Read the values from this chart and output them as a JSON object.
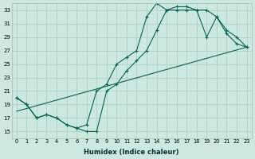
{
  "xlabel": "Humidex (Indice chaleur)",
  "bg_color": "#cce8e0",
  "grid_color": "#aaccbb",
  "line_color": "#006655",
  "xlim": [
    -0.5,
    23.5
  ],
  "ylim": [
    14,
    34
  ],
  "xticks": [
    0,
    1,
    2,
    3,
    4,
    5,
    6,
    7,
    8,
    9,
    10,
    11,
    12,
    13,
    14,
    15,
    16,
    17,
    18,
    19,
    20,
    21,
    22,
    23
  ],
  "yticks": [
    15,
    17,
    19,
    21,
    23,
    25,
    27,
    29,
    31,
    33
  ],
  "series": [
    {
      "x": [
        0,
        1,
        2,
        3,
        4,
        5,
        6,
        7,
        8,
        9,
        10,
        11,
        12,
        13,
        14,
        15,
        16,
        17,
        18,
        19,
        20,
        21,
        22,
        23
      ],
      "y": [
        20,
        19,
        17,
        17.5,
        17,
        16,
        15.5,
        16,
        21,
        22,
        25,
        26,
        27,
        32,
        34,
        33,
        33.5,
        33.5,
        33,
        29,
        32,
        29.5,
        28,
        27.5
      ],
      "marker": true
    },
    {
      "x": [
        0,
        1,
        2,
        3,
        4,
        5,
        6,
        7,
        8,
        9,
        10,
        11,
        12,
        13,
        14,
        15,
        16,
        17,
        18,
        19,
        20,
        21,
        22,
        23
      ],
      "y": [
        20,
        19,
        17,
        17.5,
        17,
        16,
        15.5,
        15,
        15,
        21,
        22,
        24,
        25.5,
        27,
        30,
        33,
        33,
        33,
        33,
        33,
        32,
        30,
        29,
        27.5
      ],
      "marker": true
    },
    {
      "x": [
        0,
        23
      ],
      "y": [
        18,
        27.5
      ],
      "marker": false
    }
  ]
}
